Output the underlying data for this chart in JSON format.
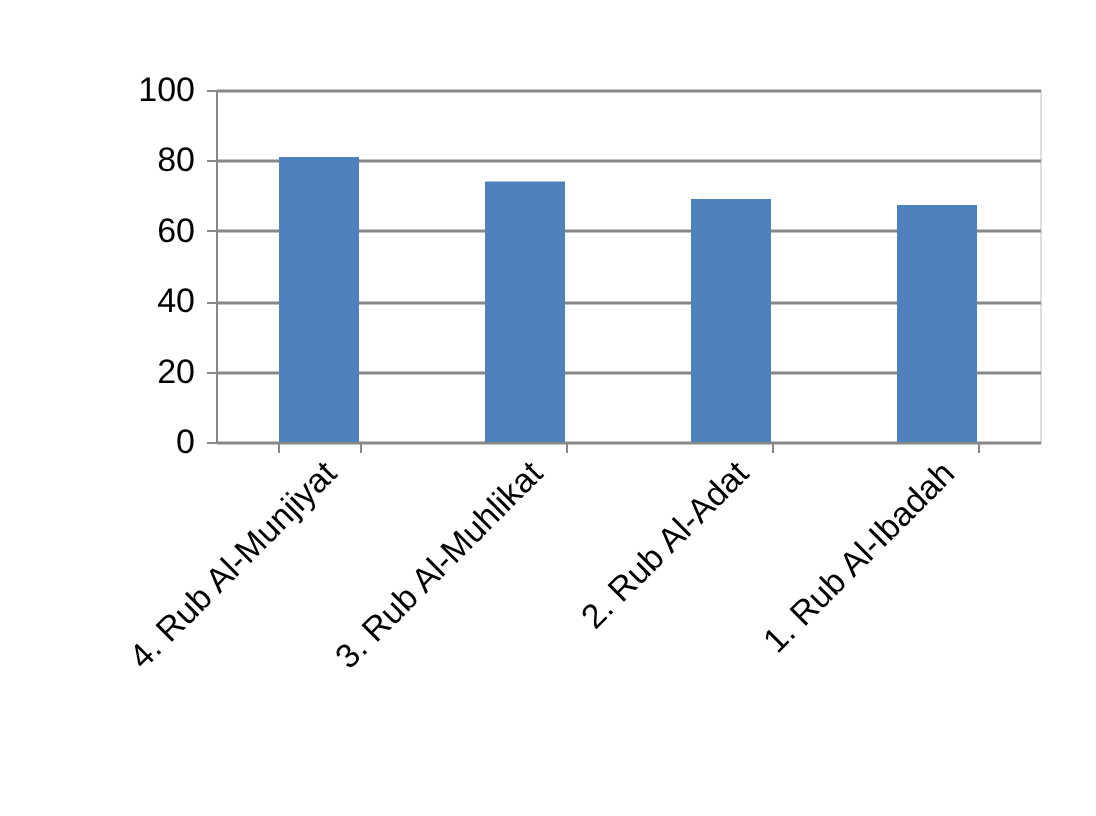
{
  "chart_data": {
    "type": "bar",
    "categories": [
      "4. Rub Al-Munjiyat",
      "3. Rub Al-Muhlikat",
      "2. Rub Al-Adat",
      "1. Rub Al-Ibadah"
    ],
    "values": [
      81,
      74,
      69,
      67.3
    ],
    "color": "#4f81bd",
    "ylim": [
      0,
      100
    ],
    "yticks": [
      0,
      20,
      40,
      60,
      80,
      100
    ],
    "grid": "y"
  }
}
